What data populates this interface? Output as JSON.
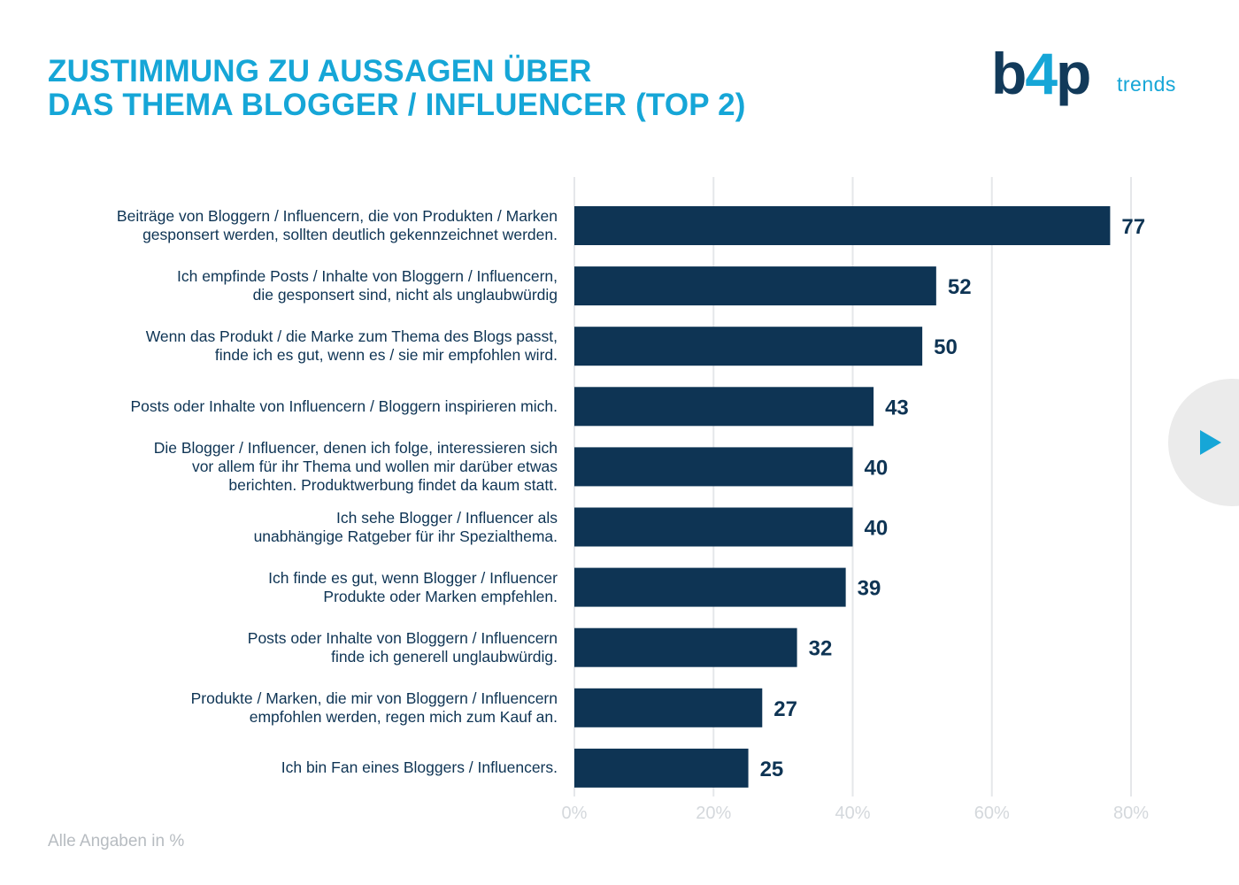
{
  "header": {
    "title_line1": "ZUSTIMMUNG ZU AUSSAGEN ÜBER",
    "title_line2": "DAS THEMA BLOGGER / INFLUENCER (TOP 2)"
  },
  "logo": {
    "mark_b": "b",
    "mark_plus": "4",
    "mark_p": "p",
    "sub": "trends"
  },
  "footnote": "Alle Angaben in %",
  "controls": {
    "play_icon": "play-icon"
  },
  "colors": {
    "title": "#16a6d7",
    "bar": "#0e3454",
    "grid": "#e5e7ea",
    "tick": "#d4d8dc",
    "footnote": "#b7bcc1"
  },
  "chart_data": {
    "type": "bar",
    "orientation": "horizontal",
    "title": "ZUSTIMMUNG ZU AUSSAGEN ÜBER DAS THEMA BLOGGER / INFLUENCER (TOP 2)",
    "categories": [
      "Beiträge von Bloggern / Influencern, die von Produkten / Marken\ngesponsert werden, sollten deutlich gekennzeichnet werden.",
      "Ich empfinde Posts / Inhalte von Bloggern / Influencern,\ndie gesponsert sind, nicht als unglaubwürdig",
      "Wenn das Produkt / die Marke zum Thema des Blogs passt,\nfinde ich es gut, wenn es / sie mir empfohlen wird.",
      "Posts oder Inhalte von Influencern / Bloggern inspirieren mich.",
      "Die Blogger / Influencer, denen ich folge, interessieren sich\nvor allem für ihr Thema und wollen mir darüber etwas\nberichten. Produktwerbung findet da kaum statt.",
      "Ich sehe Blogger / Influencer als\nunabhängige Ratgeber für ihr Spezialthema.",
      "Ich finde es gut, wenn Blogger / Influencer\nProdukte oder Marken empfehlen.",
      "Posts oder Inhalte von Bloggern / Influencern\nfinde ich generell unglaubwürdig.",
      "Produkte / Marken, die mir von Bloggern / Influencern\nempfohlen werden, regen mich zum Kauf an.",
      "Ich bin Fan eines Bloggers / Influencers."
    ],
    "values": [
      77,
      52,
      50,
      43,
      40,
      40,
      39,
      32,
      27,
      25
    ],
    "xlim": [
      0,
      80
    ],
    "x_ticks": [
      "0%",
      "20%",
      "40%",
      "60%",
      "80%"
    ],
    "grid": true,
    "unit": "%"
  }
}
